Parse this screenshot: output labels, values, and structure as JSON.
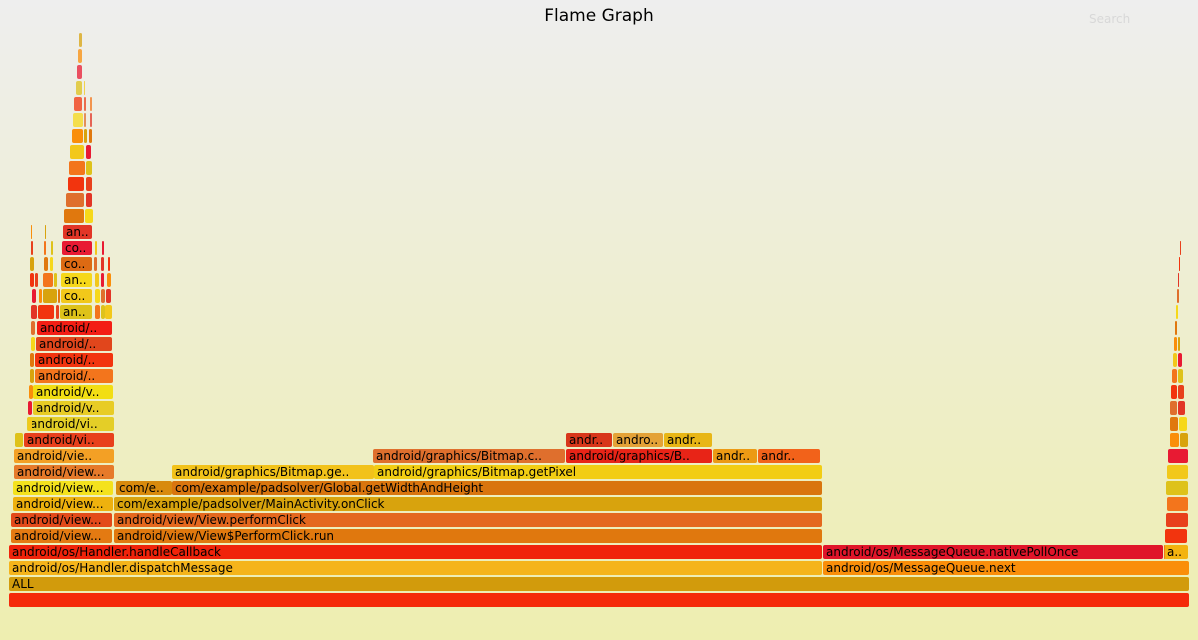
{
  "header": {
    "title": "Flame Graph",
    "search_label": "Search"
  },
  "colors": {
    "bg_top": "#eeeeee",
    "bg_bottom": "#eeeeb0"
  },
  "frames": [
    {
      "label": "",
      "color": "#f52a0a"
    },
    {
      "label": "ALL",
      "color": "#d29b0c"
    },
    {
      "label": "android/os/Handler.dispatchMessage",
      "color": "#f5b41b"
    },
    {
      "label": "android/os/MessageQueue.next",
      "color": "#fa8e0a"
    },
    {
      "label": "android/os/Handler.handleCallback",
      "color": "#f0230a"
    },
    {
      "label": "android/os/MessageQueue.nativePollOnce",
      "color": "#e01529"
    },
    {
      "label": "a..",
      "color": "#f3b30f"
    },
    {
      "label": "android/view/View$PerformClick.run",
      "color": "#e0780e"
    },
    {
      "label": "android/view...",
      "color": "#e47a12"
    },
    {
      "label": "android/view/View.performClick",
      "color": "#e4681e"
    },
    {
      "label": "android/view...",
      "color": "#e34a1a"
    },
    {
      "label": "com/example/padsolver/MainActivity.onClick",
      "color": "#d8a30d"
    },
    {
      "label": "android/view...",
      "color": "#eeb10e"
    },
    {
      "label": "com/e..",
      "color": "#d88a0d"
    },
    {
      "label": "com/example/padsolver/Global.getWidthAndHeight",
      "color": "#d9750e"
    },
    {
      "label": "android/view...",
      "color": "#f4e21d"
    },
    {
      "label": "android/graphics/Bitmap.ge..",
      "color": "#f2c21a"
    },
    {
      "label": "android/graphics/Bitmap.getPixel",
      "color": "#f2cd13"
    },
    {
      "label": "android/view...",
      "color": "#e67a2a"
    },
    {
      "label": "android/vie..",
      "color": "#f3a025"
    },
    {
      "label": "android/graphics/Bitmap.c..",
      "color": "#df6f2d"
    },
    {
      "label": "android/graphics/B..",
      "color": "#e82417"
    },
    {
      "label": "andr..",
      "color": "#ec9a14"
    },
    {
      "label": "andr..",
      "color": "#f2621a"
    },
    {
      "label": "android/vi..",
      "color": "#e8401c"
    },
    {
      "label": "andr..",
      "color": "#d8361a"
    },
    {
      "label": "andro..",
      "color": "#e4a237"
    },
    {
      "label": "andr..",
      "color": "#e8b615"
    },
    {
      "label": "android/vi..",
      "color": "#e4ce27"
    },
    {
      "label": "android/v..",
      "color": "#e8cc25"
    },
    {
      "label": "android/v..",
      "color": "#f2de13"
    },
    {
      "label": "android/..",
      "color": "#f3751c"
    },
    {
      "label": "android/..",
      "color": "#f2340e"
    },
    {
      "label": "android/..",
      "color": "#e1461c"
    },
    {
      "label": "android/..",
      "color": "#f31e14"
    },
    {
      "label": "an..",
      "color": "#dec21a"
    },
    {
      "label": "co..",
      "color": "#f2c81a"
    },
    {
      "label": "an..",
      "color": "#f6d81a"
    },
    {
      "label": "co..",
      "color": "#dd6a13"
    },
    {
      "label": "co..",
      "color": "#e81a33"
    },
    {
      "label": "an..",
      "color": "#e23526"
    }
  ]
}
